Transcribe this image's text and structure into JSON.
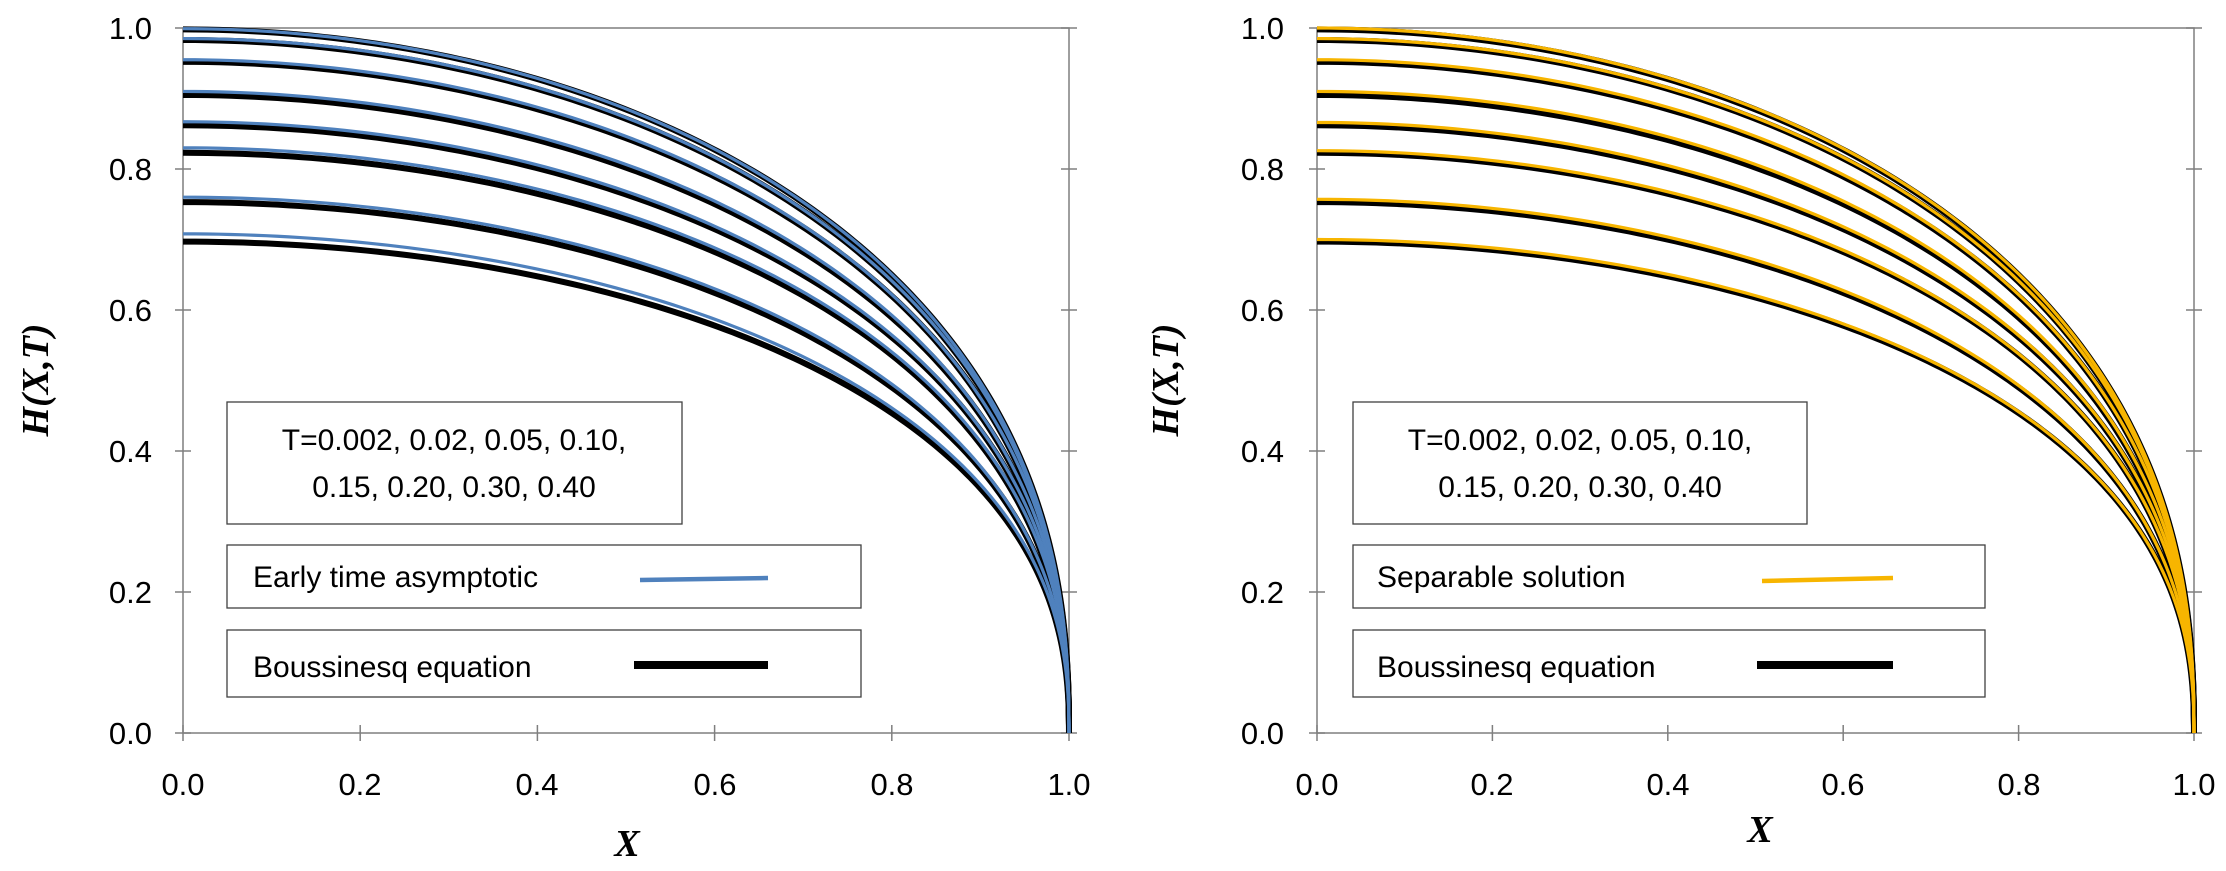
{
  "chart_data": [
    {
      "type": "line",
      "xlabel": "X",
      "ylabel": "H(X,T)",
      "xlim": [
        0,
        1
      ],
      "ylim": [
        0,
        1
      ],
      "x_ticks": [
        "0.0",
        "0.2",
        "0.4",
        "0.6",
        "0.8",
        "1.0"
      ],
      "y_ticks": [
        "0.0",
        "0.2",
        "0.4",
        "0.6",
        "0.8",
        "1.0"
      ],
      "annotation": [
        "T=0.002, 0.02, 0.05, 0.10,",
        "0.15, 0.20, 0.30, 0.40"
      ],
      "T_values": [
        0.002,
        0.02,
        0.05,
        0.1,
        0.15,
        0.2,
        0.3,
        0.4
      ],
      "h0": {
        "boussinesq": [
          0.998,
          0.983,
          0.952,
          0.905,
          0.862,
          0.823,
          0.753,
          0.697
        ],
        "comparison": [
          0.999,
          0.985,
          0.955,
          0.91,
          0.867,
          0.83,
          0.76,
          0.708
        ]
      },
      "shape": "H = h0 * (1 - X^2)^0.42",
      "comparison_color": "#4f81bd",
      "boussinesq_color": "#000000",
      "legend": [
        {
          "label": "Early time asymptotic",
          "color": "#4f81bd"
        },
        {
          "label": "Boussinesq equation",
          "color": "#000000"
        }
      ]
    },
    {
      "type": "line",
      "xlabel": "X",
      "ylabel": "H(X,T)",
      "xlim": [
        0,
        1
      ],
      "ylim": [
        0,
        1
      ],
      "x_ticks": [
        "0.0",
        "0.2",
        "0.4",
        "0.6",
        "0.8",
        "1.0"
      ],
      "y_ticks": [
        "0.0",
        "0.2",
        "0.4",
        "0.6",
        "0.8",
        "1.0"
      ],
      "annotation": [
        "T=0.002, 0.02, 0.05, 0.10,",
        "0.15, 0.20, 0.30, 0.40"
      ],
      "T_values": [
        0.002,
        0.02,
        0.05,
        0.1,
        0.15,
        0.2,
        0.3,
        0.4
      ],
      "h0": {
        "boussinesq": [
          0.998,
          0.983,
          0.952,
          0.905,
          0.862,
          0.823,
          0.753,
          0.697
        ],
        "comparison": [
          1.0,
          0.985,
          0.955,
          0.91,
          0.866,
          0.826,
          0.757,
          0.7
        ]
      },
      "shape": "H = h0 * (1 - X^2)^0.42",
      "comparison_color": "#f7b500",
      "boussinesq_color": "#000000",
      "legend": [
        {
          "label": "Separable solution",
          "color": "#f7b500"
        },
        {
          "label": "Boussinesq equation",
          "color": "#000000"
        }
      ]
    }
  ]
}
